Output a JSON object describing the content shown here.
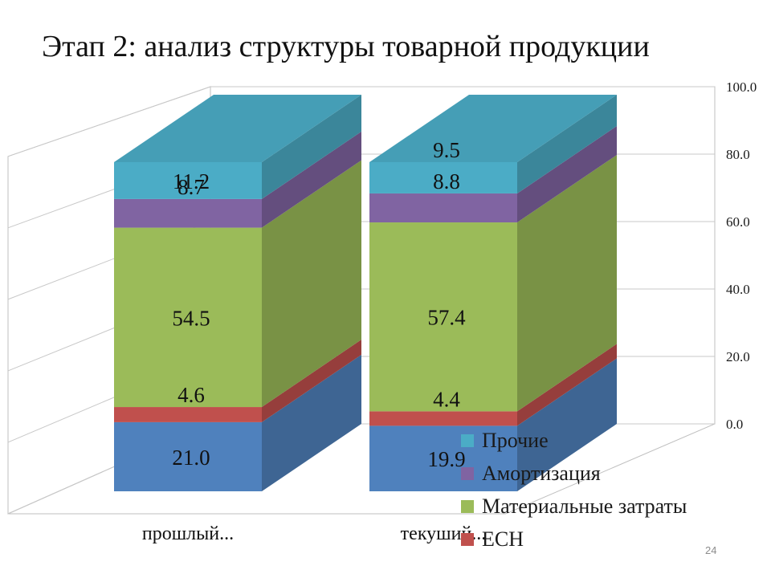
{
  "slide": {
    "title": "Этап 2: анализ структуры товарной продукции",
    "number": "24"
  },
  "colors": {
    "ech": "#c0504d",
    "materials": "#9bbb59",
    "amortization": "#8064a2",
    "other": "#4bacc6",
    "base": "#4f81bd"
  },
  "chart_data": {
    "type": "bar",
    "stacked": true,
    "three_d": true,
    "categories": [
      "прошлый...",
      "текуший..."
    ],
    "series": [
      {
        "key": "base",
        "name": "",
        "values": [
          21.0,
          19.9
        ],
        "labels": [
          "21.0",
          "19.9"
        ]
      },
      {
        "key": "ech",
        "name": "ЕСН",
        "values": [
          4.6,
          4.4
        ],
        "labels": [
          "4.6",
          "4.4"
        ]
      },
      {
        "key": "materials",
        "name": "Материальные затраты",
        "values": [
          54.5,
          57.4
        ],
        "labels": [
          "54.5",
          "57.4"
        ]
      },
      {
        "key": "amortization",
        "name": "Амортизация",
        "values": [
          8.7,
          8.8
        ],
        "labels": [
          "8.7",
          "8.8"
        ]
      },
      {
        "key": "other",
        "name": "Прочие",
        "values": [
          11.2,
          9.5
        ],
        "labels": [
          "11.2",
          "9.5"
        ]
      }
    ],
    "legend_order": [
      "other",
      "amortization",
      "materials",
      "ech"
    ],
    "y_ticks": [
      "0.0",
      "20.0",
      "40.0",
      "60.0",
      "80.0",
      "100.0"
    ],
    "ylim": [
      0,
      100
    ],
    "y_axis_side": "right",
    "grid": true,
    "legend": "bottom-right"
  }
}
